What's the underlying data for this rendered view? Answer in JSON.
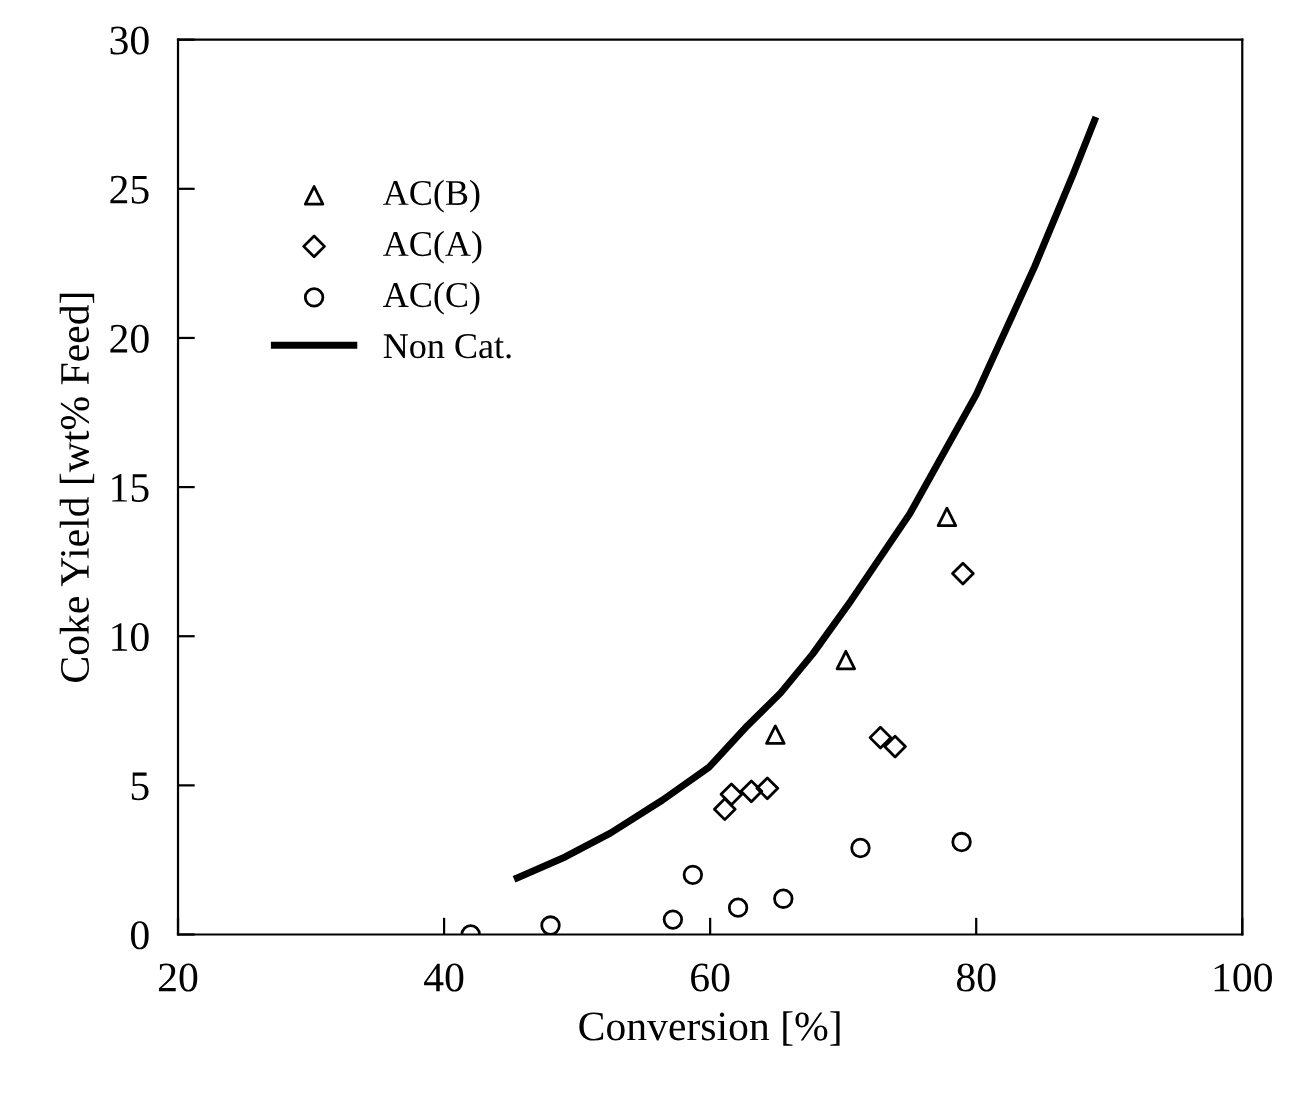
{
  "chart_data": {
    "type": "scatter",
    "xlabel": "Conversion [%]",
    "ylabel": "Coke Yield [wt% Feed]",
    "xlim": [
      20,
      100
    ],
    "ylim": [
      0,
      30
    ],
    "xticks": [
      20,
      40,
      60,
      80,
      100
    ],
    "yticks": [
      0,
      5,
      10,
      15,
      20,
      25,
      30
    ],
    "grid": false,
    "legend": "top left",
    "series": [
      {
        "name": "AC(B)",
        "marker": "triangle",
        "color": "#000000",
        "x": [
          64.9,
          70.2,
          77.8
        ],
        "values": [
          6.7,
          9.2,
          14.0
        ]
      },
      {
        "name": "AC(A)",
        "marker": "diamond",
        "color": "#000000",
        "x": [
          61.1,
          61.6,
          63.1,
          64.3,
          72.8,
          73.9,
          79.0
        ],
        "values": [
          4.2,
          4.7,
          4.8,
          4.9,
          6.6,
          6.3,
          12.1
        ]
      },
      {
        "name": "AC(C)",
        "marker": "circle",
        "color": "#000000",
        "x": [
          42.0,
          48.0,
          57.2,
          58.7,
          62.1,
          65.5,
          71.3,
          78.9
        ],
        "values": [
          0.0,
          0.3,
          0.5,
          2.0,
          0.9,
          1.2,
          2.9,
          3.1
        ]
      },
      {
        "name": "Non Cat.",
        "type": "line",
        "marker": "none",
        "line_style": "solid",
        "color": "#000000",
        "x": [
          45.5,
          49.1,
          52.5,
          56.4,
          59.9,
          62.8,
          65.3,
          67.7,
          70.6,
          75.0,
          80.0,
          84.4,
          87.3,
          88.9
        ],
        "values": [
          1.9,
          2.6,
          3.4,
          4.5,
          5.6,
          7.0,
          8.1,
          9.4,
          11.2,
          14.1,
          18.1,
          22.4,
          25.5,
          27.3
        ]
      }
    ]
  }
}
